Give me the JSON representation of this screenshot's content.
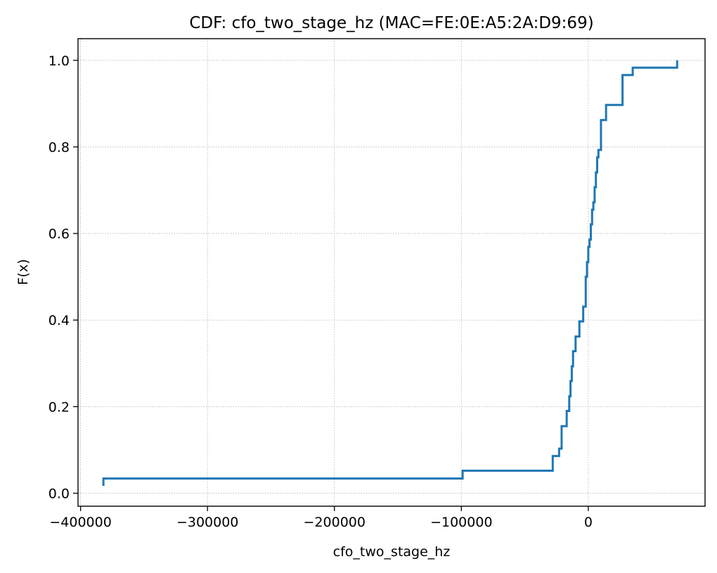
{
  "chart_data": {
    "type": "line",
    "title": "CDF: cfo_two_stage_hz (MAC=FE:0E:A5:2A:D9:69)",
    "xlabel": "cfo_two_stage_hz",
    "ylabel": "F(x)",
    "xlim": [
      -402000,
      92000
    ],
    "ylim": [
      -0.03,
      1.05
    ],
    "x_ticks": [
      -400000,
      -300000,
      -200000,
      -100000,
      0
    ],
    "x_tick_labels": [
      "−400000",
      "−300000",
      "−200000",
      "−100000",
      "0"
    ],
    "y_ticks": [
      0.0,
      0.2,
      0.4,
      0.6,
      0.8,
      1.0
    ],
    "y_tick_labels": [
      "0.0",
      "0.2",
      "0.4",
      "0.6",
      "0.8",
      "1.0"
    ],
    "grid": true,
    "drawstyle": "steps-post",
    "series": [
      {
        "color": "#1f77b4",
        "x": [
          -382000,
          -382000,
          -99000,
          -28000,
          -23000,
          -21000,
          -17000,
          -15000,
          -14000,
          -13000,
          -12000,
          -10000,
          -7000,
          -4000,
          -2000,
          -1000,
          0,
          1000,
          2000,
          3000,
          4000,
          5000,
          6000,
          7000,
          8000,
          10000,
          14000,
          27000,
          35000,
          70000
        ],
        "y": [
          0.017,
          0.034,
          0.052,
          0.086,
          0.103,
          0.155,
          0.19,
          0.224,
          0.259,
          0.293,
          0.328,
          0.362,
          0.397,
          0.431,
          0.5,
          0.534,
          0.569,
          0.586,
          0.621,
          0.655,
          0.672,
          0.707,
          0.741,
          0.776,
          0.793,
          0.862,
          0.897,
          0.966,
          0.983,
          1.0
        ]
      }
    ]
  }
}
